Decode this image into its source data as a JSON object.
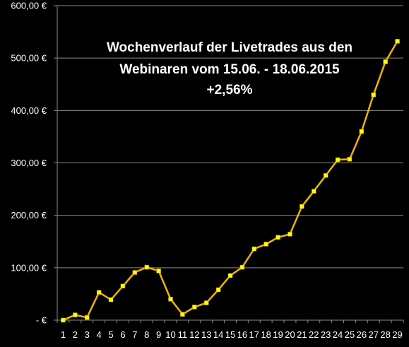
{
  "chart_data": {
    "type": "line",
    "title_lines": [
      "Wochenverlauf der Livetrades aus den",
      "Webinaren vom 15.06. - 18.06.2015",
      "+2,56%"
    ],
    "xlabel": "",
    "ylabel": "",
    "ylim": [
      0,
      600
    ],
    "y_ticks": [
      0,
      100,
      200,
      300,
      400,
      500,
      600
    ],
    "y_tick_labels": [
      "-  €",
      "100,00 €",
      "200,00 €",
      "300,00 €",
      "400,00 €",
      "500,00 €",
      "600,00 €"
    ],
    "categories": [
      "1",
      "2",
      "3",
      "4",
      "5",
      "6",
      "7",
      "8",
      "9",
      "10",
      "11",
      "12",
      "13",
      "14",
      "15",
      "16",
      "17",
      "18",
      "19",
      "20",
      "21",
      "22",
      "23",
      "24",
      "25",
      "26",
      "27",
      "28",
      "29"
    ],
    "values": [
      0,
      10,
      5,
      53,
      39,
      65,
      91,
      101,
      94,
      40,
      11,
      25,
      33,
      58,
      85,
      101,
      136,
      145,
      158,
      164,
      217,
      246,
      276,
      306,
      307,
      360,
      430,
      493,
      532
    ],
    "grid": true,
    "legend": "none",
    "colors": {
      "background": "#000000",
      "plot_background": "#000000",
      "line": "#f0b400",
      "marker": "#ffff00",
      "grid": "#8a8a8a",
      "axis": "#8a8a8a",
      "text": "#ffffff"
    }
  }
}
